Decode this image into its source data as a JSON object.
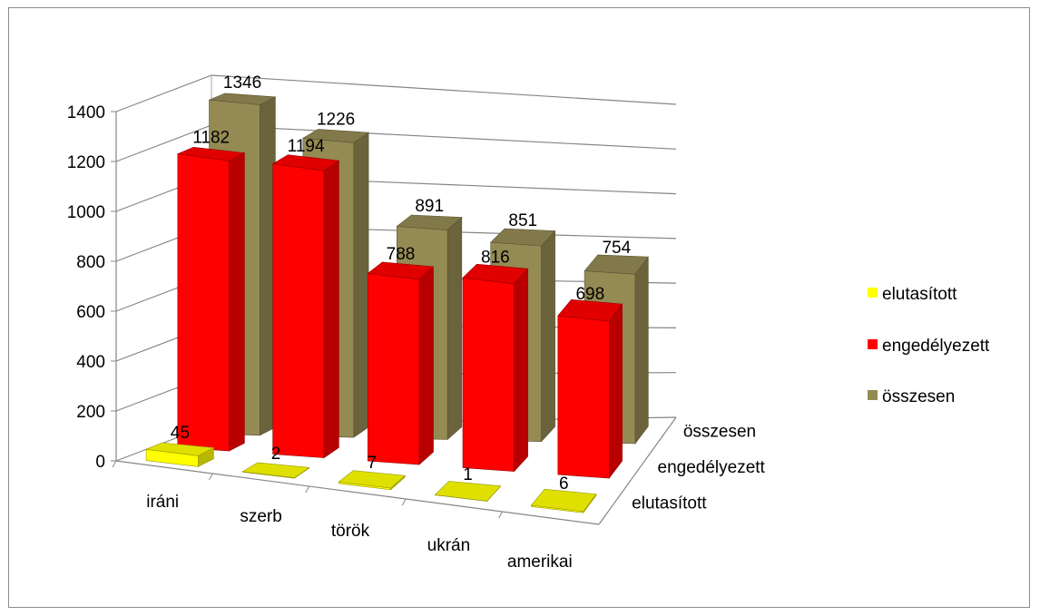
{
  "chart_data": {
    "type": "bar",
    "variant": "3d-clustered-depth",
    "title": "",
    "xlabel": "",
    "ylabel": "",
    "ylim": [
      0,
      1400
    ],
    "yticks": [
      0,
      200,
      400,
      600,
      800,
      1000,
      1200,
      1400
    ],
    "grid": true,
    "legend_position": "right",
    "categories": [
      "iráni",
      "szerb",
      "török",
      "ukrán",
      "amerikai"
    ],
    "series": [
      {
        "name": "elutasított",
        "color": "#ffff00",
        "values": [
          45,
          2,
          7,
          1,
          6
        ]
      },
      {
        "name": "engedélyezett",
        "color": "#ff0000",
        "values": [
          1182,
          1194,
          788,
          816,
          698
        ]
      },
      {
        "name": "összesen",
        "color": "#948a54",
        "values": [
          1346,
          1226,
          891,
          851,
          754
        ]
      }
    ]
  }
}
